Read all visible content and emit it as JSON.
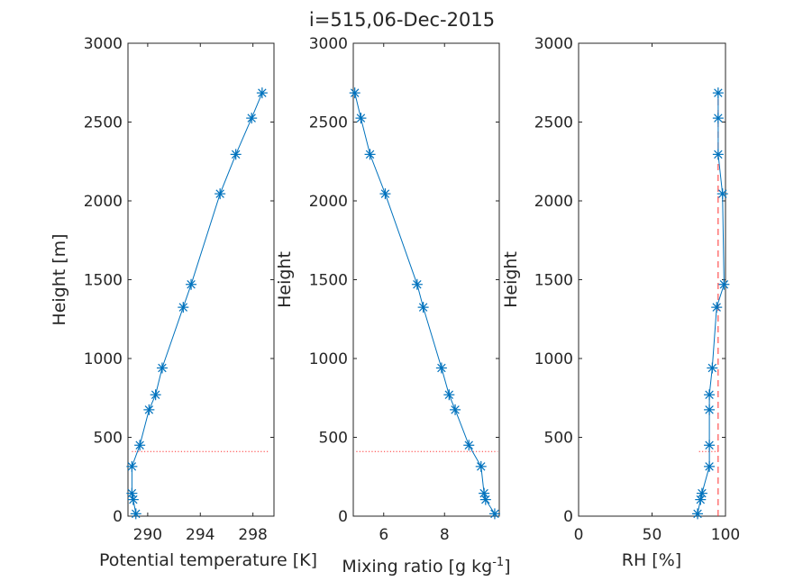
{
  "figure": {
    "title": "i=515,06-Dec-2015"
  },
  "chart_data": [
    {
      "type": "line",
      "xlabel": "Potential temperature [K]",
      "ylabel": "Height [m]",
      "xlim": [
        288.5,
        299.6
      ],
      "ylim": [
        0,
        3000
      ],
      "xticks": [
        290,
        294,
        298
      ],
      "yticks": [
        0,
        500,
        1000,
        1500,
        2000,
        2500,
        3000
      ],
      "grid": false,
      "series": [
        {
          "marker": "asterisk",
          "color": "#0072BD",
          "x": [
            289.1,
            288.9,
            288.8,
            288.8,
            289.4,
            290.1,
            290.6,
            291.1,
            292.7,
            293.3,
            295.5,
            296.7,
            297.9,
            298.7
          ],
          "y": [
            15,
            105,
            145,
            315,
            450,
            675,
            770,
            940,
            1325,
            1470,
            2045,
            2295,
            2525,
            2685
          ]
        }
      ],
      "reference_lines": [
        {
          "style": "dotted",
          "color": "#ff3030",
          "y": 410,
          "x": [
            288.8,
            299.2
          ]
        }
      ]
    },
    {
      "type": "line",
      "xlabel": "Mixing ratio [g kg",
      "xlabel_sup": "-1",
      "xlabel_end": "]",
      "ylabel": "Height",
      "xlim": [
        5.0,
        9.8
      ],
      "ylim": [
        0,
        3000
      ],
      "xticks": [
        6,
        8
      ],
      "yticks": [
        0,
        500,
        1000,
        1500,
        2000,
        2500,
        3000
      ],
      "grid": false,
      "series": [
        {
          "marker": "asterisk",
          "color": "#0072BD",
          "x": [
            9.65,
            9.35,
            9.3,
            9.2,
            8.8,
            8.35,
            8.15,
            7.9,
            7.3,
            7.1,
            6.05,
            5.55,
            5.25,
            5.05
          ],
          "y": [
            15,
            105,
            145,
            315,
            450,
            675,
            770,
            940,
            1325,
            1470,
            2045,
            2295,
            2525,
            2685
          ]
        }
      ],
      "reference_lines": [
        {
          "style": "dotted",
          "color": "#ff3030",
          "y": 410,
          "x": [
            5.1,
            9.75
          ]
        }
      ]
    },
    {
      "type": "line",
      "xlabel": "RH [%]",
      "ylabel": "Height",
      "xlim": [
        0,
        100
      ],
      "ylim": [
        0,
        3000
      ],
      "xticks": [
        0,
        50,
        100
      ],
      "yticks": [
        0,
        500,
        1000,
        1500,
        2000,
        2500,
        3000
      ],
      "grid": false,
      "series": [
        {
          "marker": "asterisk",
          "color": "#0072BD",
          "x": [
            81,
            83,
            84,
            89,
            89,
            89,
            89,
            91,
            94,
            99,
            98,
            95,
            95,
            95
          ],
          "y": [
            15,
            105,
            145,
            315,
            450,
            675,
            770,
            940,
            1325,
            1470,
            2045,
            2295,
            2525,
            2685
          ]
        }
      ],
      "reference_lines": [
        {
          "style": "dashed",
          "color": "#ff3030",
          "x": 95,
          "y": [
            0,
            2685
          ]
        },
        {
          "style": "dotted",
          "color": "#ff3030",
          "y": 410,
          "x": [
            82,
            96
          ]
        }
      ]
    }
  ]
}
